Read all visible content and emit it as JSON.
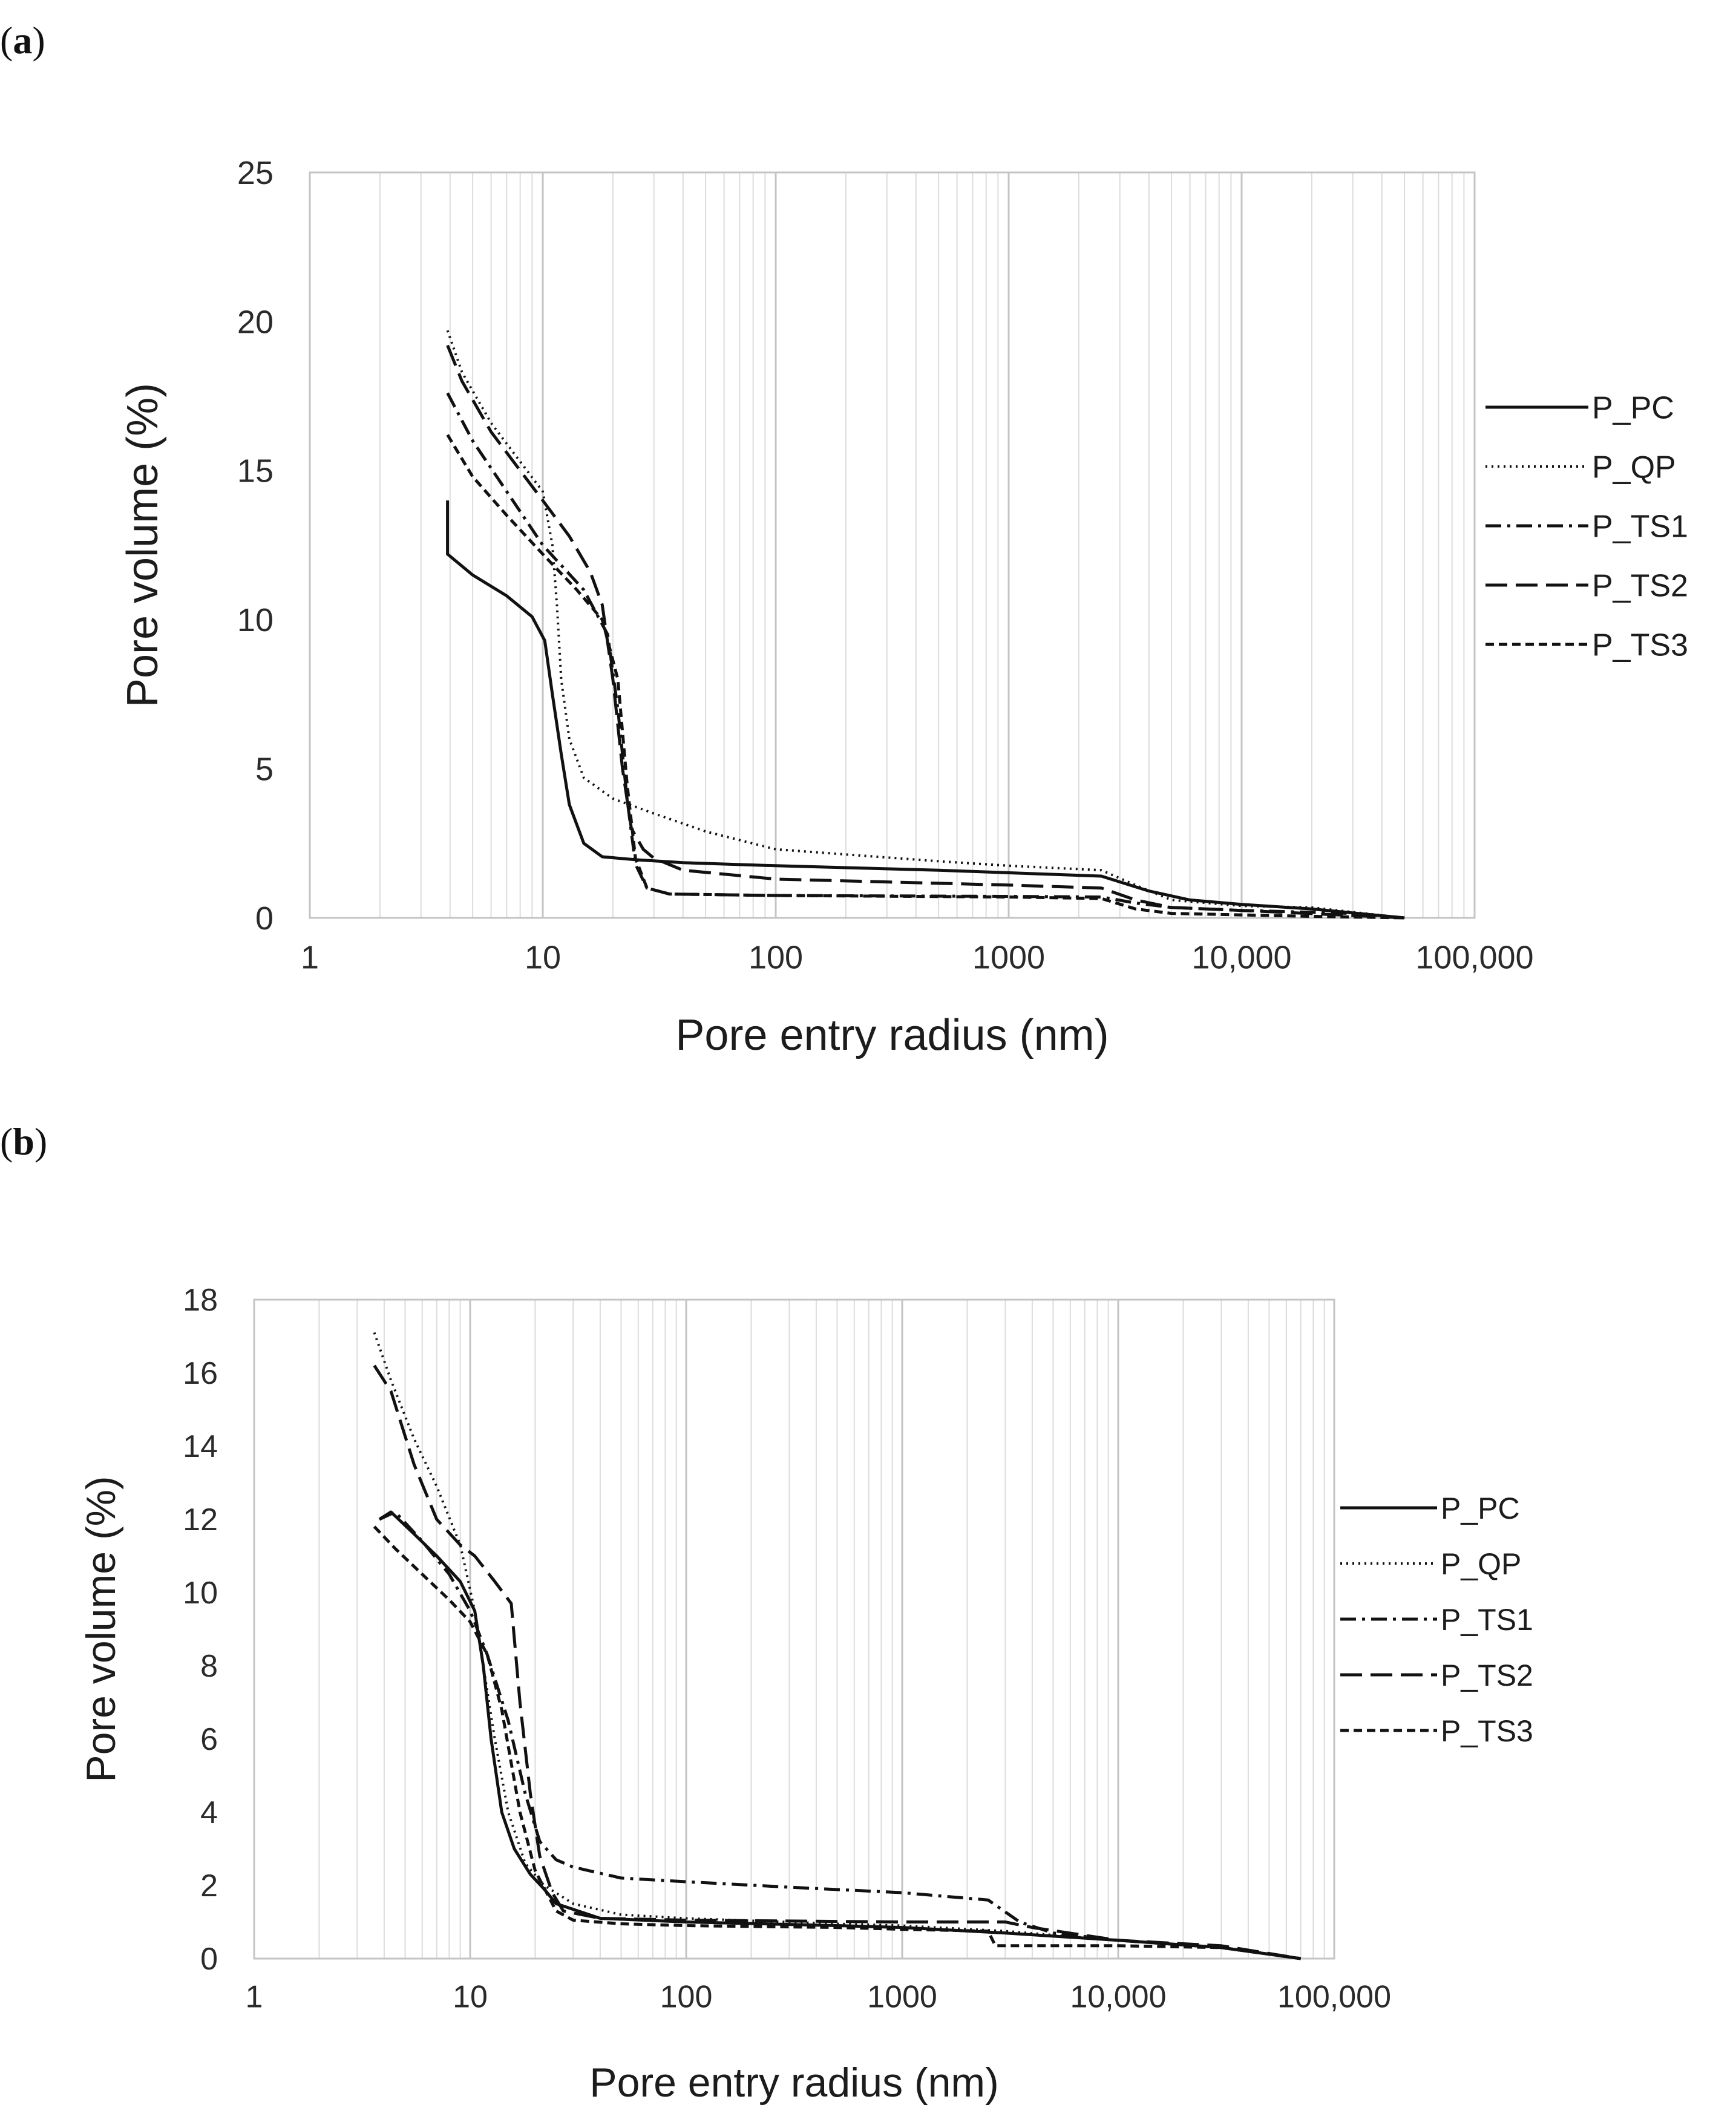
{
  "panels": [
    {
      "label": "a"
    },
    {
      "label": "b"
    }
  ],
  "chart_data": [
    {
      "type": "line",
      "panel": "a",
      "title": "",
      "xlabel": "Pore entry radius (nm)",
      "ylabel": "Pore volume (%)",
      "xscale": "log",
      "xlim": [
        1,
        100000
      ],
      "ylim": [
        0,
        25
      ],
      "yticks": [
        0,
        5,
        10,
        15,
        20,
        25
      ],
      "xticks": [
        1,
        10,
        100,
        1000,
        10000,
        100000
      ],
      "xtick_labels": [
        "1",
        "10",
        "100",
        "1000",
        "10,000",
        "100,000"
      ],
      "grid": true,
      "legend_position": "right",
      "series": [
        {
          "name": "P_PC",
          "dash": "solid",
          "x": [
            3.9,
            3.9,
            3.9,
            5,
            7,
            9,
            10.2,
            11,
            12,
            13,
            15,
            18,
            25,
            40,
            100,
            500,
            2500,
            4000,
            6000,
            10000,
            20000,
            50000
          ],
          "y": [
            14.0,
            12.3,
            12.2,
            11.5,
            10.8,
            10.1,
            9.3,
            7.5,
            5.5,
            3.8,
            2.5,
            2.05,
            1.95,
            1.85,
            1.75,
            1.6,
            1.4,
            0.9,
            0.6,
            0.45,
            0.3,
            0
          ]
        },
        {
          "name": "P_QP",
          "dash": "dotted",
          "x": [
            3.9,
            4.5,
            6,
            8,
            10,
            11,
            11.5,
            12,
            13,
            15,
            20,
            30,
            50,
            100,
            500,
            1000,
            2500,
            3500,
            5000,
            10000,
            20000,
            50000
          ],
          "y": [
            19.7,
            18.3,
            16.6,
            15.3,
            14.3,
            12.5,
            10.5,
            8.0,
            6.0,
            4.7,
            4.0,
            3.5,
            2.9,
            2.3,
            1.9,
            1.75,
            1.6,
            1.1,
            0.6,
            0.4,
            0.35,
            0
          ]
        },
        {
          "name": "P_TS1",
          "dash": "dashdot",
          "x": [
            3.9,
            5,
            7,
            10,
            15,
            19,
            21,
            23,
            25,
            28,
            35,
            100,
            1000,
            2500,
            3500,
            5000,
            10000,
            30000,
            50000
          ],
          "y": [
            17.6,
            16.0,
            14.3,
            12.5,
            11.0,
            9.5,
            7.0,
            4.0,
            1.8,
            1.0,
            0.8,
            0.75,
            0.72,
            0.7,
            0.5,
            0.35,
            0.25,
            0.15,
            0
          ]
        },
        {
          "name": "P_TS2",
          "dash": "longdash",
          "x": [
            3.9,
            4.5,
            6,
            8,
            10,
            13,
            16,
            18,
            20,
            22,
            24,
            27,
            30,
            40,
            100,
            1000,
            2500,
            3500,
            5000,
            10000,
            50000
          ],
          "y": [
            19.2,
            18.0,
            16.3,
            15.0,
            14.0,
            12.8,
            11.6,
            10.5,
            8.0,
            5.0,
            3.0,
            2.3,
            2.0,
            1.6,
            1.3,
            1.1,
            1.0,
            0.6,
            0.35,
            0.25,
            0
          ]
        },
        {
          "name": "P_TS3",
          "dash": "shortdash",
          "x": [
            3.9,
            5,
            7,
            10,
            14,
            18,
            21,
            23,
            25,
            28,
            35,
            100,
            1000,
            2500,
            3500,
            5000,
            10000,
            20000,
            50000
          ],
          "y": [
            16.2,
            14.8,
            13.5,
            12.2,
            11.0,
            10.0,
            8.0,
            4.5,
            2.0,
            1.0,
            0.8,
            0.75,
            0.7,
            0.65,
            0.3,
            0.15,
            0.1,
            0.05,
            0
          ]
        }
      ]
    },
    {
      "type": "line",
      "panel": "b",
      "title": "",
      "xlabel": "Pore entry radius (nm)",
      "ylabel": "Pore volume (%)",
      "xscale": "log",
      "xlim": [
        1,
        100000
      ],
      "ylim": [
        0,
        18
      ],
      "yticks": [
        0,
        2,
        4,
        6,
        8,
        10,
        12,
        14,
        16,
        18
      ],
      "xticks": [
        1,
        10,
        100,
        1000,
        10000,
        100000
      ],
      "xtick_labels": [
        "1",
        "10",
        "100",
        "1000",
        "10,000",
        "100,000"
      ],
      "grid": true,
      "legend_position": "right",
      "series": [
        {
          "name": "P_PC",
          "dash": "solid",
          "x": [
            3.8,
            4.3,
            5.5,
            7,
            9,
            10.5,
            11.5,
            12.5,
            14,
            16,
            19,
            22,
            25,
            40,
            100,
            500,
            1000,
            3000,
            10000,
            30000,
            70000
          ],
          "y": [
            12.0,
            12.2,
            11.6,
            11.0,
            10.3,
            9.5,
            8.0,
            6.0,
            4.0,
            3.0,
            2.3,
            1.9,
            1.5,
            1.1,
            1.0,
            0.9,
            0.85,
            0.7,
            0.5,
            0.3,
            0
          ]
        },
        {
          "name": "P_QP",
          "dash": "dotted",
          "x": [
            3.6,
            4.3,
            5.5,
            7,
            9,
            10.5,
            11.5,
            13,
            15,
            18,
            22,
            30,
            50,
            100,
            500,
            1000,
            3000,
            10000,
            30000,
            70000
          ],
          "y": [
            17.1,
            15.8,
            14.2,
            12.9,
            11.3,
            9.5,
            8.0,
            6.0,
            4.0,
            2.6,
            2.0,
            1.5,
            1.2,
            1.1,
            0.95,
            0.9,
            0.75,
            0.5,
            0.3,
            0
          ]
        },
        {
          "name": "P_TS1",
          "dash": "dashdot",
          "x": [
            3.8,
            4.5,
            6,
            8,
            10,
            12,
            15,
            18,
            21,
            25,
            30,
            50,
            100,
            300,
            1000,
            2500,
            3500,
            5000,
            10000,
            30000,
            70000
          ],
          "y": [
            12.0,
            12.2,
            11.4,
            10.5,
            9.5,
            8.3,
            6.5,
            4.5,
            3.2,
            2.7,
            2.5,
            2.2,
            2.1,
            1.95,
            1.8,
            1.6,
            1.0,
            0.7,
            0.5,
            0.3,
            0
          ]
        },
        {
          "name": "P_TS2",
          "dash": "longdash",
          "x": [
            3.6,
            4.3,
            5.5,
            7,
            9,
            10.5,
            13,
            15.5,
            17,
            19,
            21,
            24,
            27,
            40,
            100,
            1000,
            3000,
            4000,
            10000,
            30000,
            70000
          ],
          "y": [
            16.2,
            15.5,
            13.5,
            12.0,
            11.3,
            11.0,
            10.3,
            9.7,
            7.0,
            4.5,
            2.8,
            1.8,
            1.3,
            1.1,
            1.05,
            1.0,
            1.0,
            0.85,
            0.5,
            0.35,
            0
          ]
        },
        {
          "name": "P_TS3",
          "dash": "shortdash",
          "x": [
            3.6,
            4.5,
            6,
            8,
            10,
            12,
            14,
            17,
            20,
            25,
            30,
            50,
            100,
            500,
            1000,
            2500,
            2700,
            5000,
            10000,
            30000,
            70000
          ],
          "y": [
            11.8,
            11.2,
            10.5,
            9.8,
            9.2,
            8.3,
            6.8,
            4.0,
            2.4,
            1.3,
            1.05,
            0.95,
            0.9,
            0.85,
            0.8,
            0.75,
            0.35,
            0.35,
            0.35,
            0.3,
            0
          ]
        }
      ]
    }
  ]
}
